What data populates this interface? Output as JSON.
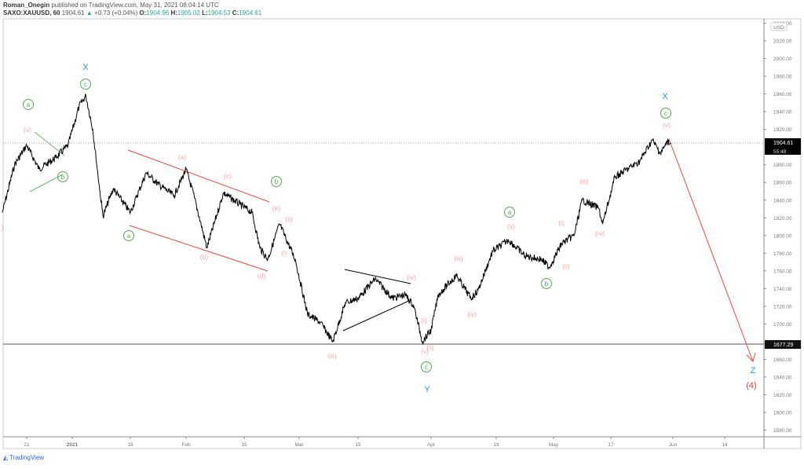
{
  "header": {
    "author": "Roman_Onegin",
    "published": "published on TradingView.com, May 31, 2021 08:04:14 UTC",
    "symbol": "SAXO:XAUUSD, 60",
    "last": "1904.61",
    "change": "+0.73 (+0.04%)",
    "o_label": "O:",
    "o": "1904.96",
    "h_label": "H:",
    "h": "1905.02",
    "l_label": "L:",
    "l": "1904.53",
    "c_label": "C:",
    "c": "1904.61"
  },
  "watermark": "TradingView",
  "colors": {
    "wave_pink": "#f4a3a3",
    "wave_green": "#4caf50",
    "wave_blue": "#2196f3",
    "target_red": "#e53935",
    "channel_red": "#f44336",
    "price": "#000000"
  },
  "chart_data": {
    "type": "line",
    "currency_label": "USD",
    "ylim": [
      1575,
      2045
    ],
    "y_ticks": [
      "2040.00",
      "2020.00",
      "2000.00",
      "1980.00",
      "1960.00",
      "1940.00",
      "1920.00",
      "1900.00",
      "1880.00",
      "1860.00",
      "1840.00",
      "1820.00",
      "1800.00",
      "1780.00",
      "1760.00",
      "1740.00",
      "1720.00",
      "1700.00",
      "1680.00",
      "1660.00",
      "1640.00",
      "1620.00",
      "1600.00",
      "1580.00"
    ],
    "x_ticks": [
      "21",
      "2021",
      "18",
      "Feb",
      "15",
      "Mar",
      "15",
      "Apr",
      "19",
      "May",
      "17",
      "Jun",
      "14"
    ],
    "last_price_label": "1904.61",
    "countdown_label": "55:48",
    "support_label": "1677.29",
    "series": [
      {
        "values": [
          [
            "2020-12-15",
            1826
          ],
          [
            "2020-12-18",
            1880
          ],
          [
            "2020-12-21",
            1902
          ],
          [
            "2020-12-24",
            1875
          ],
          [
            "2020-12-28",
            1888
          ],
          [
            "2020-12-31",
            1902
          ],
          [
            "2021-01-03",
            1946
          ],
          [
            "2021-01-05",
            1958
          ],
          [
            "2021-01-07",
            1920
          ],
          [
            "2021-01-09",
            1853
          ],
          [
            "2021-01-10",
            1822
          ],
          [
            "2021-01-13",
            1853
          ],
          [
            "2021-01-18",
            1826
          ],
          [
            "2021-01-22",
            1871
          ],
          [
            "2021-01-25",
            1858
          ],
          [
            "2021-01-29",
            1845
          ],
          [
            "2021-02-01",
            1875
          ],
          [
            "2021-02-03",
            1843
          ],
          [
            "2021-02-06",
            1786
          ],
          [
            "2021-02-10",
            1848
          ],
          [
            "2021-02-14",
            1835
          ],
          [
            "2021-02-17",
            1826
          ],
          [
            "2021-02-19",
            1786
          ],
          [
            "2021-02-21",
            1773
          ],
          [
            "2021-02-24",
            1813
          ],
          [
            "2021-02-28",
            1773
          ],
          [
            "2021-03-03",
            1711
          ],
          [
            "2021-03-06",
            1702
          ],
          [
            "2021-03-09",
            1680
          ],
          [
            "2021-03-12",
            1724
          ],
          [
            "2021-03-15",
            1729
          ],
          [
            "2021-03-19",
            1751
          ],
          [
            "2021-03-23",
            1729
          ],
          [
            "2021-03-26",
            1733
          ],
          [
            "2021-03-28",
            1720
          ],
          [
            "2021-03-30",
            1680
          ],
          [
            "2021-04-01",
            1693
          ],
          [
            "2021-04-03",
            1733
          ],
          [
            "2021-04-08",
            1755
          ],
          [
            "2021-04-12",
            1729
          ],
          [
            "2021-04-14",
            1738
          ],
          [
            "2021-04-18",
            1782
          ],
          [
            "2021-04-22",
            1795
          ],
          [
            "2021-04-26",
            1777
          ],
          [
            "2021-04-30",
            1773
          ],
          [
            "2021-05-02",
            1764
          ],
          [
            "2021-05-05",
            1791
          ],
          [
            "2021-05-08",
            1800
          ],
          [
            "2021-05-10",
            1840
          ],
          [
            "2021-05-14",
            1831
          ],
          [
            "2021-05-15",
            1813
          ],
          [
            "2021-05-18",
            1866
          ],
          [
            "2021-05-24",
            1884
          ],
          [
            "2021-05-27",
            1908
          ],
          [
            "2021-05-29",
            1893
          ],
          [
            "2021-05-31",
            1908
          ],
          [
            "2021-05-31",
            1904.61
          ]
        ]
      }
    ],
    "annotations": [
      {
        "text": "(v)",
        "color": "wave_pink"
      },
      {
        "text": "(a)",
        "color": "wave_pink"
      },
      {
        "text": "(c)",
        "color": "wave_pink"
      },
      {
        "text": "(e)",
        "color": "wave_pink"
      },
      {
        "text": "(ii)",
        "color": "wave_pink"
      },
      {
        "text": "(i)",
        "color": "wave_pink"
      },
      {
        "text": "(b)",
        "color": "wave_pink"
      },
      {
        "text": "(d)",
        "color": "wave_pink"
      },
      {
        "text": "(iii)",
        "color": "wave_pink"
      },
      {
        "text": "(iv)",
        "color": "wave_pink"
      },
      {
        "text": "(i)",
        "color": "wave_pink"
      },
      {
        "text": "(ii)",
        "color": "wave_pink"
      },
      {
        "text": "(v)",
        "color": "wave_pink"
      },
      {
        "text": "(iii)",
        "color": "wave_pink"
      },
      {
        "text": "(iv)",
        "color": "wave_pink"
      },
      {
        "text": "(v)",
        "color": "wave_pink"
      },
      {
        "text": "(i)",
        "color": "wave_pink"
      },
      {
        "text": "(ii)",
        "color": "wave_pink"
      },
      {
        "text": "(iii)",
        "color": "wave_pink"
      },
      {
        "text": "(iv)",
        "color": "wave_pink"
      },
      {
        "text": "(v)",
        "color": "wave_pink"
      },
      {
        "text": ")",
        "color": "wave_pink"
      },
      {
        "text": "a",
        "color": "wave_green",
        "circled": true
      },
      {
        "text": "c",
        "color": "wave_green",
        "circled": true
      },
      {
        "text": "b",
        "color": "wave_green",
        "circled": true
      },
      {
        "text": "a",
        "color": "wave_green",
        "circled": true
      },
      {
        "text": "b",
        "color": "wave_green",
        "circled": true
      },
      {
        "text": "a",
        "color": "wave_green",
        "circled": true
      },
      {
        "text": "b",
        "color": "wave_green",
        "circled": true
      },
      {
        "text": "c",
        "color": "wave_green",
        "circled": true
      },
      {
        "text": "c",
        "color": "wave_green",
        "circled": true
      },
      {
        "text": "X",
        "color": "wave_blue"
      },
      {
        "text": "X",
        "color": "wave_blue"
      },
      {
        "text": "Y",
        "color": "wave_blue"
      },
      {
        "text": "Z",
        "color": "wave_blue"
      },
      {
        "text": "(4)",
        "color": "target_red"
      }
    ]
  }
}
